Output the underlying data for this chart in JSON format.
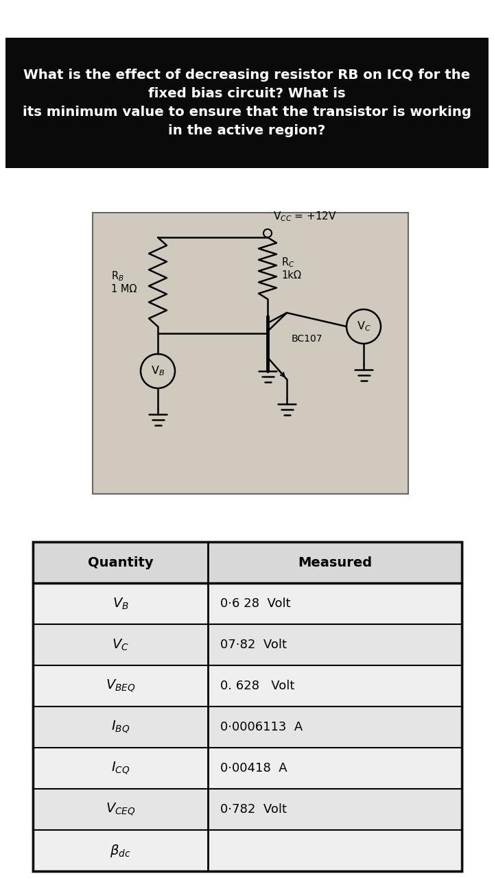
{
  "title_line1": "What is the effect of decreasing resistor RB on ICQ for the",
  "title_line2": "fixed bias circuit? What is",
  "title_line3": "its minimum value to ensure that the transistor is working",
  "title_line4": "in the active region?",
  "title_bg": "#0a0a0a",
  "title_fg": "#ffffff",
  "circuit_bg": "#cfc9be",
  "vcc_label": "V$_{CC}$ = +12V",
  "rc_label": "R$_C$\n1kΩ",
  "rb_label": "R$_B$\n1 MΩ",
  "transistor_label": "BC107",
  "vc_label": "V$_C$",
  "vb_label": "V$_B$",
  "table_quantities": [
    "$V_B$",
    "$V_C$",
    "$V_{BEQ}$",
    "$I_{BQ}$",
    "$I_{CQ}$",
    "$V_{CEQ}$",
    "$\\beta_{dc}$"
  ],
  "table_header_qty": "Quantity",
  "table_header_meas": "Measured",
  "table_border": "#111111"
}
